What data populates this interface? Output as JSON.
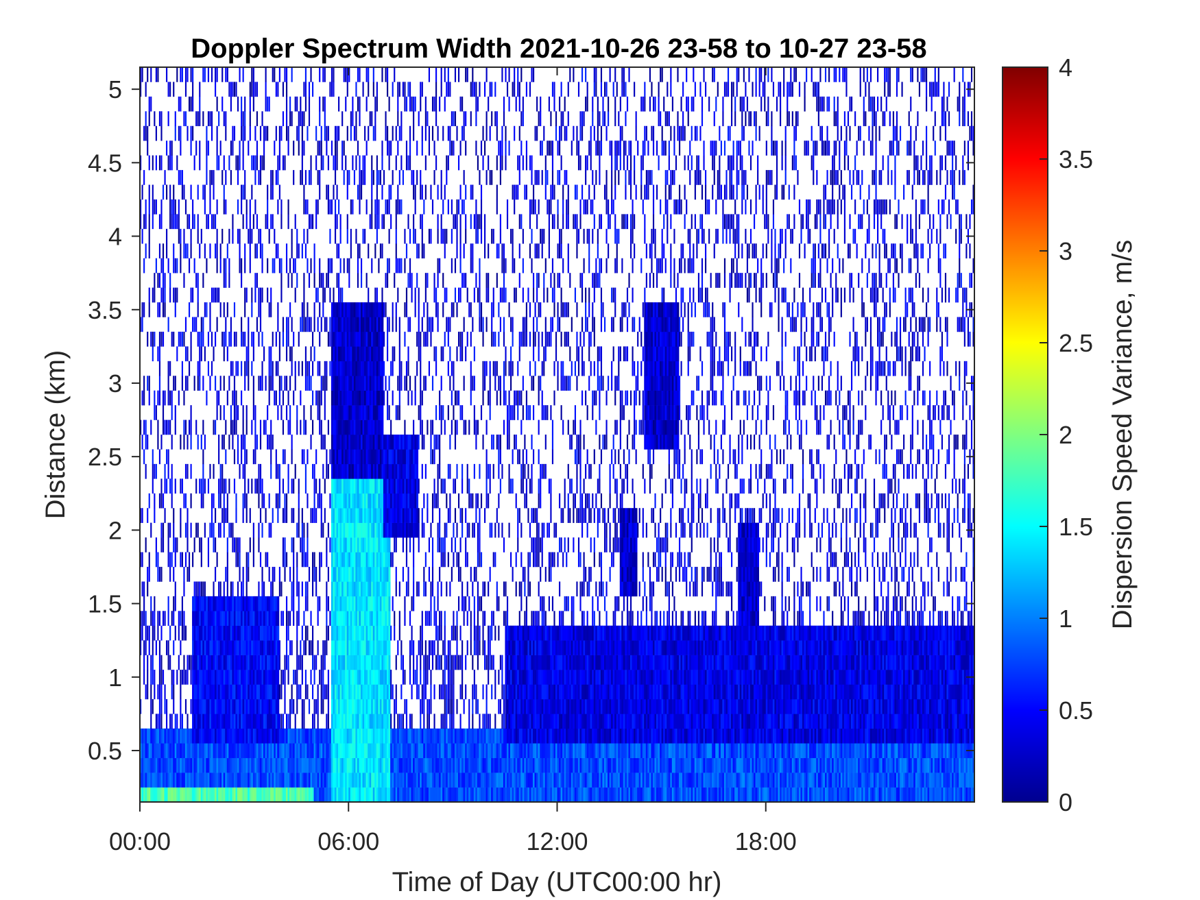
{
  "chart_data": {
    "type": "heatmap",
    "title": "Doppler Spectrum Width 2021-10-26 23-58 to 10-27 23-58",
    "xlabel": "Time of Day (UTC00:00 hr)",
    "ylabel": "Distance (km)",
    "xlim": [
      0,
      24
    ],
    "ylim": [
      0.15,
      5.15
    ],
    "x_ticks": [
      0,
      6,
      12,
      18
    ],
    "x_tick_labels": [
      "00:00",
      "06:00",
      "12:00",
      "18:00"
    ],
    "y_ticks": [
      0.5,
      1,
      1.5,
      2,
      2.5,
      3,
      3.5,
      4,
      4.5,
      5
    ],
    "y_tick_labels": [
      "0.5",
      "1",
      "1.5",
      "2",
      "2.5",
      "3",
      "3.5",
      "4",
      "4.5",
      "5"
    ],
    "colorbar": {
      "label": "Dispersion Speed Variance, m/s",
      "range": [
        0,
        4
      ],
      "ticks": [
        0,
        0.5,
        1,
        1.5,
        2,
        2.5,
        3,
        3.5,
        4
      ],
      "tick_labels": [
        "0",
        "0.5",
        "1",
        "1.5",
        "2",
        "2.5",
        "3",
        "3.5",
        "4"
      ],
      "colormap": "jet"
    },
    "features": [
      {
        "x": [
          0,
          24
        ],
        "y": [
          0.15,
          0.6
        ],
        "value": 0.8,
        "desc": "near-ground layer"
      },
      {
        "x": [
          0,
          5
        ],
        "y": [
          0.15,
          0.3
        ],
        "value": 1.8
      },
      {
        "x": [
          1.5,
          4
        ],
        "y": [
          0.6,
          1.5
        ],
        "value": 0.5
      },
      {
        "x": [
          5.5,
          7.2
        ],
        "y": [
          0.15,
          2.4
        ],
        "value": 1.4
      },
      {
        "x": [
          5.5,
          7
        ],
        "y": [
          2.4,
          3.5
        ],
        "value": 0.3
      },
      {
        "x": [
          7,
          8
        ],
        "y": [
          2,
          2.6
        ],
        "value": 0.4
      },
      {
        "x": [
          10.5,
          24
        ],
        "y": [
          0.6,
          1.35
        ],
        "value": 0.4
      },
      {
        "x": [
          14.5,
          15.5
        ],
        "y": [
          2.6,
          3.5
        ],
        "value": 0.3
      },
      {
        "x": [
          13.8,
          14.3
        ],
        "y": [
          1.6,
          2.1
        ],
        "value": 0.3
      },
      {
        "x": [
          17.2,
          17.8
        ],
        "y": [
          1.4,
          2.0
        ],
        "value": 0.3
      },
      {
        "x": [
          0,
          24
        ],
        "y": [
          0.15,
          5.15
        ],
        "value": 0.35,
        "desc": "sparse scattered noise"
      }
    ],
    "grid": false
  }
}
